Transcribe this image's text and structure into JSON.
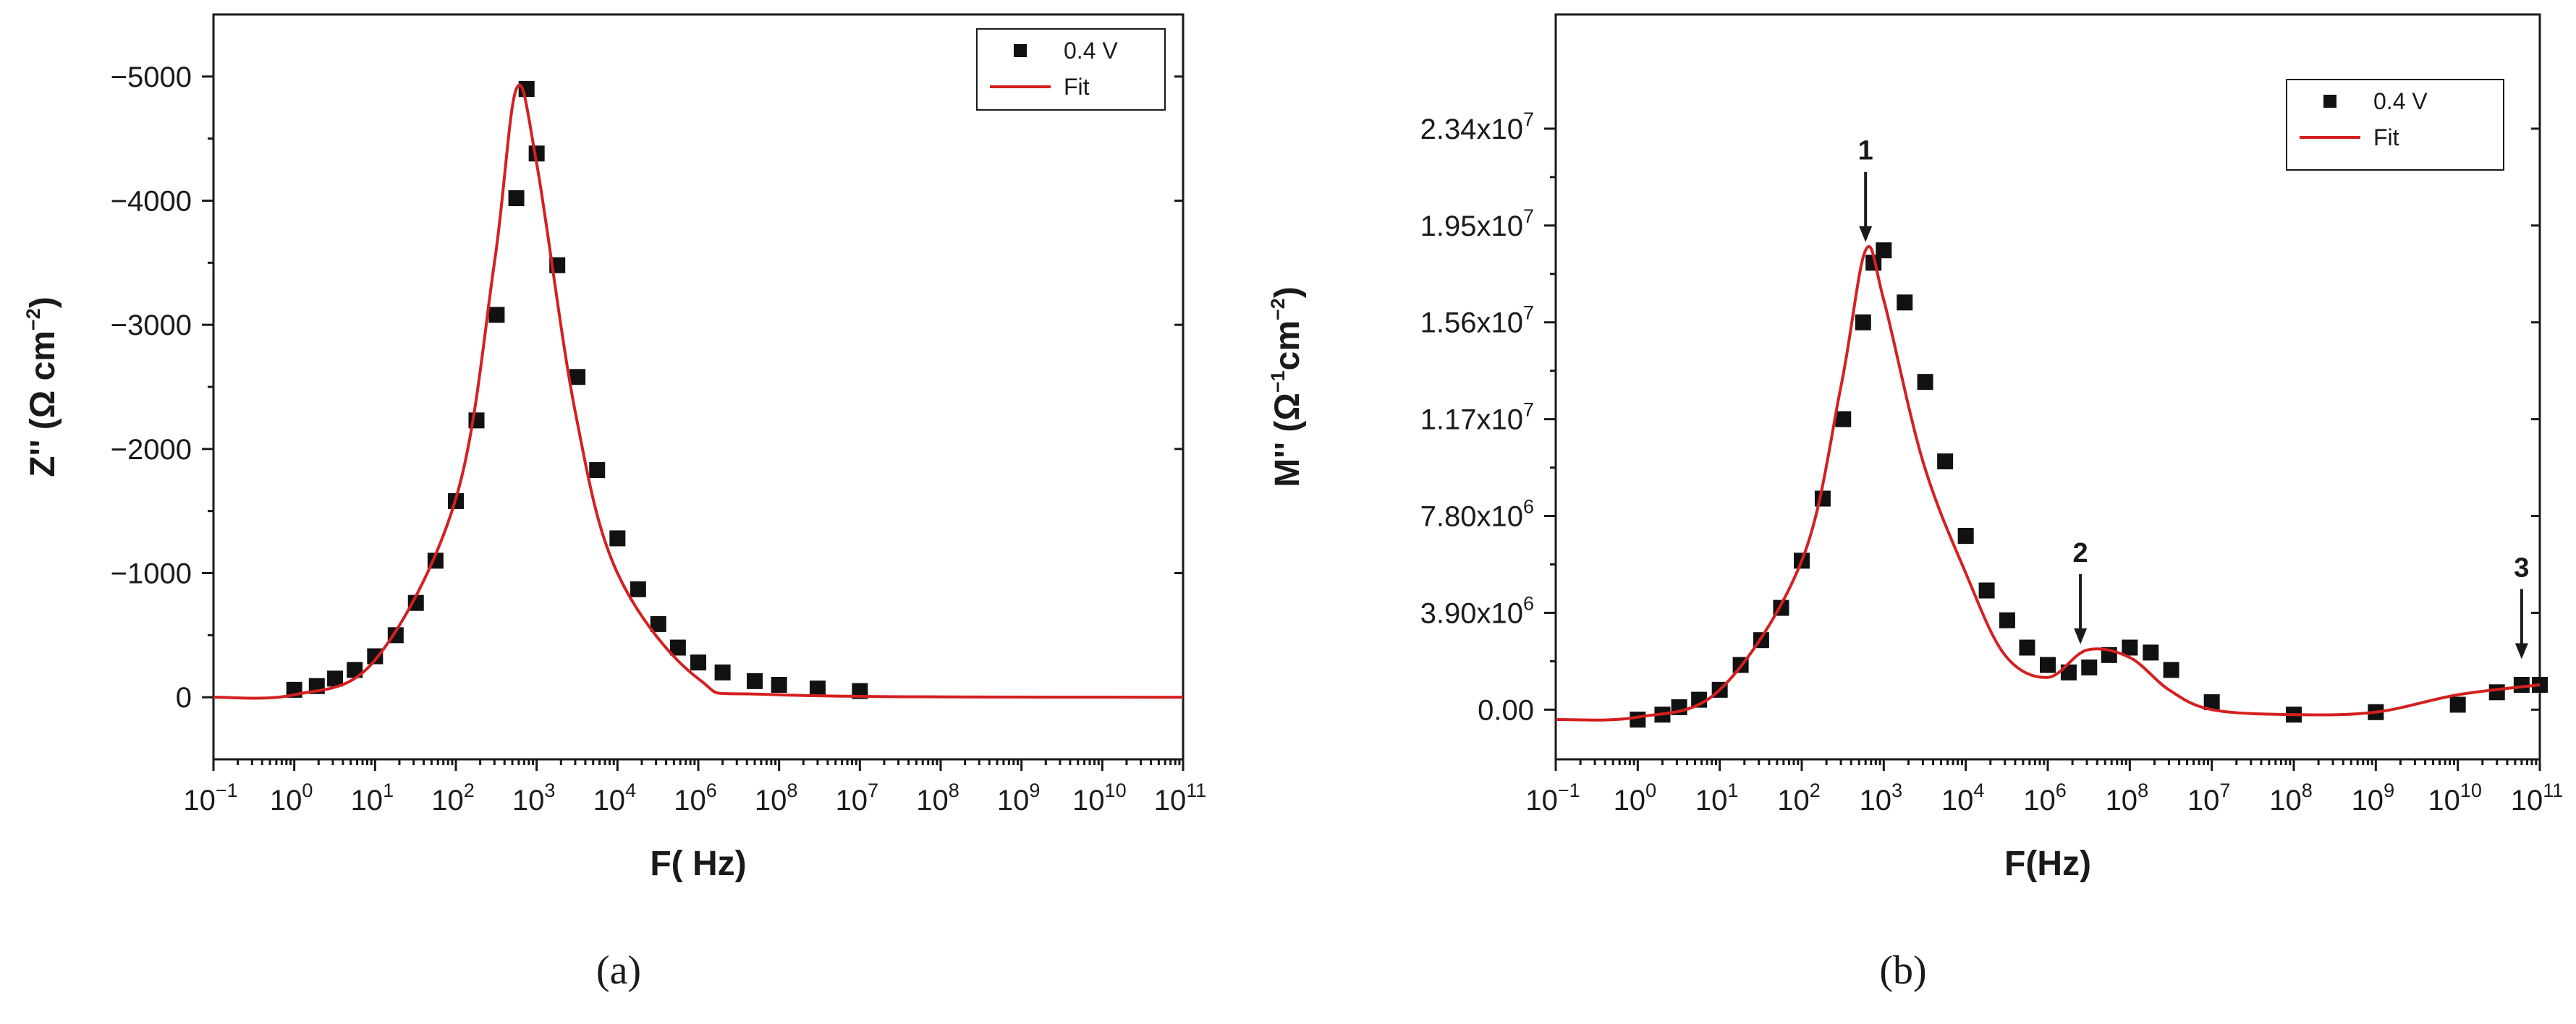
{
  "chart_data": [
    {
      "type": "scatter",
      "panel_label": "(a)",
      "xlabel": "F( Hz)",
      "ylabel_base": "Z'' (Ω cm",
      "ylabel_sup": "−2",
      "ylabel_end": ")",
      "xscale": "log",
      "xlim": [
        0.1,
        100000000000
      ],
      "ylim": [
        500,
        -5500
      ],
      "x_ticks": [
        "-1",
        "0",
        "1",
        "2",
        "3",
        "4",
        "6",
        "8",
        "7",
        "8",
        "9",
        "10",
        "11"
      ],
      "y_ticks": [
        "0",
        "-1000",
        "-2000",
        "-3000",
        "-4000",
        "-5000"
      ],
      "y_tick_values": [
        0,
        -1000,
        -2000,
        -3000,
        -4000,
        -5000
      ],
      "legend": {
        "placement": "top-right",
        "points_label": "0.4 V",
        "line_label": "Fit"
      },
      "series": [
        {
          "name": "0.4 V",
          "kind": "points",
          "color": "#111111",
          "x": [
            1,
            1.9,
            3.2,
            5.6,
            10,
            18,
            32,
            56,
            100,
            180,
            320,
            560,
            750,
            1000,
            1800,
            3200,
            5600,
            10000,
            18000,
            32000,
            56000,
            100000,
            200000,
            500000,
            1000000,
            3000000,
            10000000
          ],
          "y": [
            -60,
            -90,
            -150,
            -220,
            -330,
            -500,
            -760,
            -1100,
            -1580,
            -2230,
            -3080,
            -4020,
            -4900,
            -4380,
            -3480,
            -2580,
            -1830,
            -1280,
            -870,
            -590,
            -400,
            -280,
            -200,
            -130,
            -100,
            -70,
            -50
          ]
        },
        {
          "name": "Fit",
          "kind": "line",
          "color": "#d42020",
          "peak_x": 560,
          "peak_y": -4900,
          "x": [
            0.1,
            1,
            10,
            100,
            300,
            560,
            1000,
            3000,
            10000,
            100000,
            1000000,
            100000000000
          ],
          "y": [
            0,
            -20,
            -300,
            -1600,
            -3500,
            -4900,
            -4300,
            -2300,
            -1000,
            -150,
            -20,
            0
          ]
        }
      ]
    },
    {
      "type": "scatter",
      "panel_label": "(b)",
      "xlabel": "F(Hz)",
      "ylabel_base": "M'' (Ω",
      "ylabel_sup1": "−1",
      "ylabel_mid": "cm",
      "ylabel_sup2": "−2",
      "ylabel_end": ")",
      "xscale": "log",
      "xlim": [
        0.1,
        100000000000
      ],
      "ylim": [
        -2000000,
        28000000
      ],
      "x_ticks": [
        "-1",
        "0",
        "1",
        "2",
        "3",
        "4",
        "6",
        "8",
        "7",
        "8",
        "9",
        "10",
        "11"
      ],
      "y_tick_labels": [
        {
          "base": "0.00",
          "exp": ""
        },
        {
          "base": "3.90x10",
          "exp": "6"
        },
        {
          "base": "7.80x10",
          "exp": "6"
        },
        {
          "base": "1.17x10",
          "exp": "7"
        },
        {
          "base": "1.56x10",
          "exp": "7"
        },
        {
          "base": "1.95x10",
          "exp": "7"
        },
        {
          "base": "2.34x10",
          "exp": "7"
        }
      ],
      "y_tick_values": [
        0,
        3900000,
        7800000,
        11700000,
        15600000,
        19500000,
        23400000
      ],
      "legend": {
        "placement": "top-right",
        "points_label": "0.4 V",
        "line_label": "Fit"
      },
      "annotations": [
        {
          "text": "1",
          "x": 600,
          "y": 18600000
        },
        {
          "text": "2",
          "x": 250000,
          "y": 2400000
        },
        {
          "text": "3",
          "x": 60000000000,
          "y": 1800000
        }
      ],
      "series": [
        {
          "name": "0.4 V",
          "kind": "points",
          "color": "#111111",
          "x": [
            1,
            2,
            3.2,
            5.6,
            10,
            18,
            32,
            56,
            100,
            180,
            320,
            560,
            750,
            1000,
            1800,
            3200,
            5600,
            10000,
            18000,
            32000,
            56000,
            100000,
            180000,
            320000,
            560000,
            1000000,
            1800000,
            3200000,
            10000000,
            100000000,
            1000000000,
            10000000000,
            30000000000,
            60000000000,
            100000000000
          ],
          "y": [
            -400000,
            -200000,
            100000,
            400000,
            800000,
            1800000,
            2800000,
            4100000,
            6000000,
            8500000,
            11700000,
            15600000,
            18000000,
            18500000,
            16400000,
            13200000,
            10000000,
            7000000,
            4800000,
            3600000,
            2500000,
            1800000,
            1500000,
            1700000,
            2200000,
            2500000,
            2300000,
            1600000,
            300000,
            -200000,
            -100000,
            200000,
            700000,
            1000000,
            1000000
          ]
        },
        {
          "name": "Fit",
          "kind": "line",
          "color": "#d42020",
          "x": [
            0.1,
            1,
            10,
            100,
            300,
            600,
            1000,
            3000,
            10000,
            30000,
            100000,
            300000,
            1000000,
            3000000,
            10000000,
            100000000,
            1000000000,
            10000000000,
            100000000000
          ],
          "y": [
            -400000,
            -300000,
            800000,
            6000000,
            13000000,
            18500000,
            16500000,
            10000000,
            5500000,
            2200000,
            1300000,
            2400000,
            2100000,
            800000,
            0,
            -200000,
            -100000,
            600000,
            1000000
          ]
        }
      ]
    }
  ]
}
